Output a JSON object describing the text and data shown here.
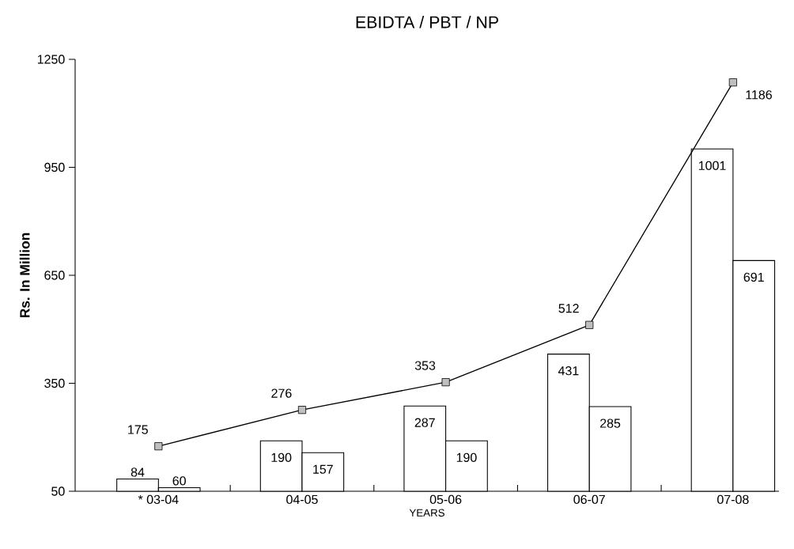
{
  "chart_data": {
    "type": "bar",
    "title": "EBIDTA / PBT / NP",
    "xlabel": "YEARS",
    "ylabel": "Rs. In Million",
    "categories": [
      "* 03-04",
      "04-05",
      "05-06",
      "06-07",
      "07-08"
    ],
    "series": [
      {
        "color": "#ffffff",
        "values": [
          84,
          190,
          287,
          431,
          1001
        ]
      },
      {
        "color": "#ffffff",
        "values": [
          60,
          157,
          190,
          285,
          691
        ]
      },
      {
        "type": "line",
        "color": "#000000",
        "marker": "square",
        "line_style": "solid",
        "values": [
          175,
          276,
          353,
          512,
          1186
        ]
      }
    ],
    "ylim": [
      50,
      1250
    ],
    "yticks": [
      50,
      350,
      650,
      950,
      1250
    ],
    "data_labels": true
  }
}
